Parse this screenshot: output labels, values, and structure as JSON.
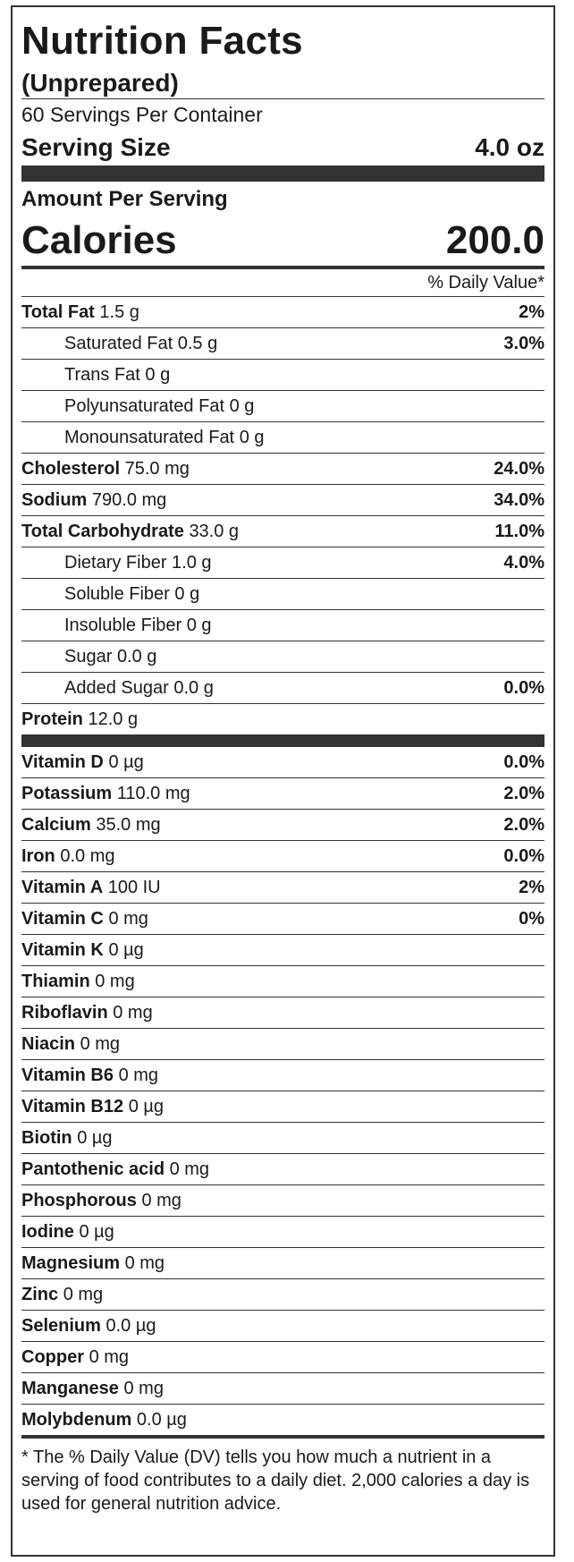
{
  "title": "Nutrition Facts",
  "subtitle": "(Unprepared)",
  "servings_per_container": "60 Servings Per Container",
  "serving_size": {
    "label": "Serving Size",
    "value": "4.0 oz"
  },
  "amount_per_serving": "Amount Per Serving",
  "calories": {
    "label": "Calories",
    "value": "200.0"
  },
  "daily_value_header": "% Daily Value*",
  "macro_rows": [
    {
      "name": "Total Fat",
      "amount": "1.5 g",
      "dv": "2%"
    },
    {
      "name": "Saturated Fat",
      "amount": "0.5 g",
      "dv": "3.0%"
    },
    {
      "name": "Trans Fat",
      "amount": "0 g",
      "dv": ""
    },
    {
      "name": "Polyunsaturated Fat",
      "amount": "0 g",
      "dv": ""
    },
    {
      "name": "Monounsaturated Fat",
      "amount": "0 g",
      "dv": ""
    },
    {
      "name": "Cholesterol",
      "amount": "75.0 mg",
      "dv": "24.0%"
    },
    {
      "name": "Sodium",
      "amount": "790.0 mg",
      "dv": "34.0%"
    },
    {
      "name": "Total Carbohydrate",
      "amount": "33.0 g",
      "dv": "11.0%"
    },
    {
      "name": "Dietary Fiber",
      "amount": "1.0 g",
      "dv": "4.0%"
    },
    {
      "name": "Soluble Fiber",
      "amount": "0 g",
      "dv": ""
    },
    {
      "name": "Insoluble Fiber",
      "amount": "0 g",
      "dv": ""
    },
    {
      "name": "Sugar",
      "amount": "0.0 g",
      "dv": ""
    },
    {
      "name": "Added Sugar",
      "amount": "0.0 g",
      "dv": "0.0%"
    },
    {
      "name": "Protein",
      "amount": "12.0 g",
      "dv": ""
    }
  ],
  "micro_rows": [
    {
      "name": "Vitamin D",
      "amount": "0 µg",
      "dv": "0.0%"
    },
    {
      "name": "Potassium",
      "amount": "110.0 mg",
      "dv": "2.0%"
    },
    {
      "name": "Calcium",
      "amount": "35.0 mg",
      "dv": "2.0%"
    },
    {
      "name": "Iron",
      "amount": "0.0 mg",
      "dv": "0.0%"
    },
    {
      "name": "Vitamin A",
      "amount": "100 IU",
      "dv": "2%"
    },
    {
      "name": "Vitamin C",
      "amount": "0 mg",
      "dv": "0%"
    },
    {
      "name": "Vitamin K",
      "amount": "0 µg",
      "dv": ""
    },
    {
      "name": "Thiamin",
      "amount": "0 mg",
      "dv": ""
    },
    {
      "name": "Riboflavin",
      "amount": "0 mg",
      "dv": ""
    },
    {
      "name": "Niacin",
      "amount": "0 mg",
      "dv": ""
    },
    {
      "name": "Vitamin B6",
      "amount": "0 mg",
      "dv": ""
    },
    {
      "name": "Vitamin B12",
      "amount": "0 µg",
      "dv": ""
    },
    {
      "name": "Biotin",
      "amount": "0 µg",
      "dv": ""
    },
    {
      "name": "Pantothenic acid",
      "amount": "0 mg",
      "dv": ""
    },
    {
      "name": "Phosphorous",
      "amount": "0 mg",
      "dv": ""
    },
    {
      "name": "Iodine",
      "amount": "0 µg",
      "dv": ""
    },
    {
      "name": "Magnesium",
      "amount": "0 mg",
      "dv": ""
    },
    {
      "name": "Zinc",
      "amount": "0 mg",
      "dv": ""
    },
    {
      "name": "Selenium",
      "amount": "0.0 µg",
      "dv": ""
    },
    {
      "name": "Copper",
      "amount": "0 mg",
      "dv": ""
    },
    {
      "name": "Manganese",
      "amount": "0 mg",
      "dv": ""
    },
    {
      "name": "Molybdenum",
      "amount": "0.0 µg",
      "dv": ""
    }
  ],
  "footnote": "* The % Daily Value (DV) tells you how much a nutrient in a serving of food contributes to a daily diet. 2,000 calories a day is used for general nutrition advice."
}
